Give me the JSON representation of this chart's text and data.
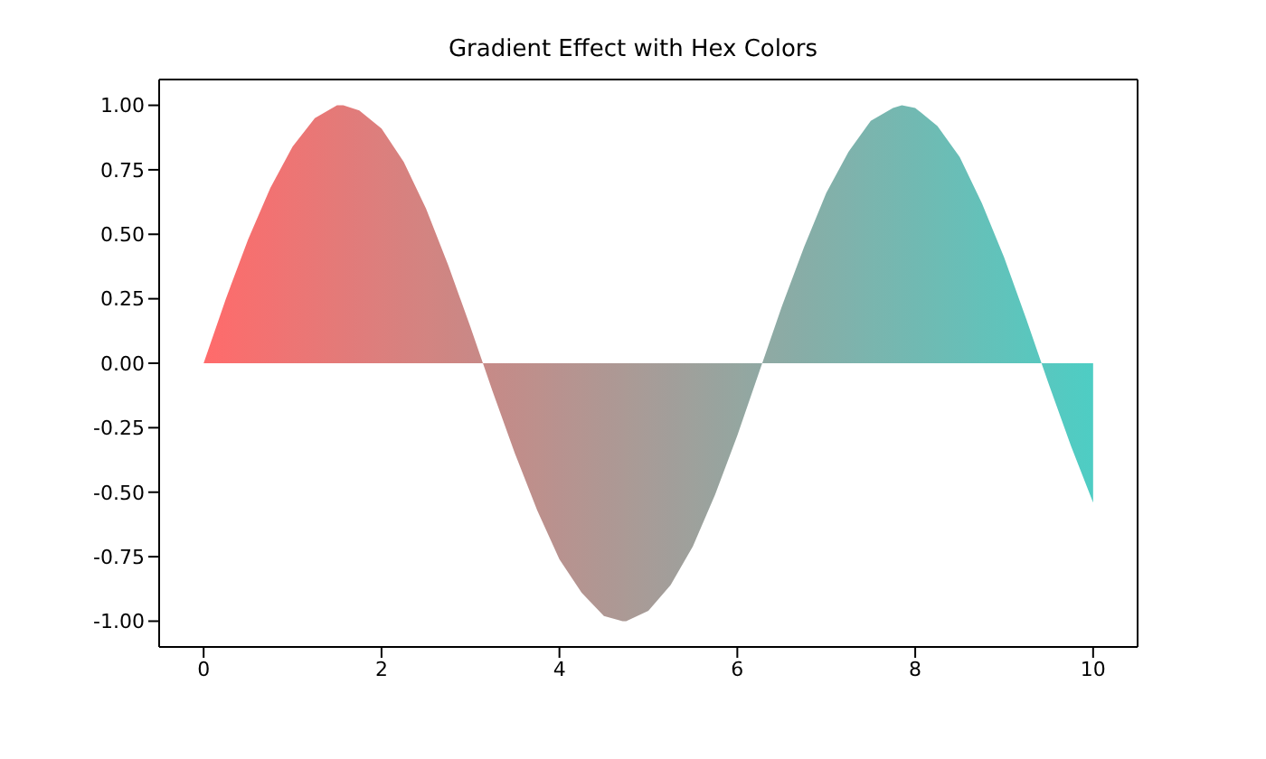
{
  "chart_data": {
    "type": "area",
    "title": "Gradient Effect with Hex Colors",
    "x": [
      0,
      0.25,
      0.5,
      0.75,
      1,
      1.25,
      1.5,
      1.57,
      1.75,
      2,
      2.25,
      2.5,
      2.75,
      3,
      3.14,
      3.25,
      3.5,
      3.75,
      4,
      4.25,
      4.5,
      4.71,
      4.75,
      5,
      5.25,
      5.5,
      5.75,
      6,
      6.25,
      6.28,
      6.5,
      6.75,
      7,
      7.25,
      7.5,
      7.75,
      7.85,
      8,
      8.25,
      8.5,
      8.75,
      9,
      9.25,
      9.42,
      9.5,
      9.75,
      10
    ],
    "series": [
      {
        "colors": [
          "#ff6b6b",
          "#fb6d6d",
          "#f6706f",
          "#f27272",
          "#ed7574",
          "#e97776",
          "#e47a78",
          "#e37a79",
          "#e07c7b",
          "#dc7f7d",
          "#d7817f",
          "#d38481",
          "#ce8683",
          "#ca8886",
          "#c78a87",
          "#c58b88",
          "#c18d8a",
          "#bd908c",
          "#b8928f",
          "#b49591",
          "#af9793",
          "#ac9995",
          "#ab9a95",
          "#a79c98",
          "#a29e9a",
          "#9ea19c",
          "#99a39e",
          "#95a6a0",
          "#90a8a3",
          "#90a9a3",
          "#8caba5",
          "#87ada7",
          "#83b0a9",
          "#7fb2ac",
          "#7ab5ae",
          "#76b7b0",
          "#74b8b1",
          "#71b9b2",
          "#6dbcb4",
          "#69beb7",
          "#64c1b9",
          "#60c3bb",
          "#5bc6bd",
          "#58c7bf",
          "#57c8c0",
          "#52cbc2",
          "#4ecdc4"
        ],
        "values": [
          0,
          0.25,
          0.48,
          0.68,
          0.84,
          0.95,
          1.0,
          1.0,
          0.98,
          0.91,
          0.78,
          0.6,
          0.38,
          0.14,
          0,
          -0.11,
          -0.35,
          -0.57,
          -0.76,
          -0.89,
          -0.98,
          -1.0,
          -1.0,
          -0.96,
          -0.86,
          -0.71,
          -0.51,
          -0.28,
          -0.03,
          0,
          0.22,
          0.45,
          0.66,
          0.82,
          0.94,
          0.99,
          1.0,
          0.99,
          0.92,
          0.8,
          0.62,
          0.41,
          0.17,
          0,
          -0.08,
          -0.32,
          -0.54
        ]
      }
    ],
    "xlim": [
      -0.5,
      10.5
    ],
    "xticks": [
      0,
      2,
      4,
      6,
      8,
      10
    ],
    "ylim": [
      -1.1,
      1.1
    ],
    "yticks": [
      {
        "value": -1,
        "label": "-1.00"
      },
      {
        "value": -0.75,
        "label": "-0.75"
      },
      {
        "value": -0.5,
        "label": "-0.50"
      },
      {
        "value": -0.25,
        "label": "-0.25"
      },
      {
        "value": 0,
        "label": "0.00"
      },
      {
        "value": 0.25,
        "label": "0.25"
      },
      {
        "value": 0.5,
        "label": "0.50"
      },
      {
        "value": 0.75,
        "label": "0.75"
      },
      {
        "value": 1,
        "label": "1.00"
      }
    ],
    "grid": false,
    "legend": false
  }
}
